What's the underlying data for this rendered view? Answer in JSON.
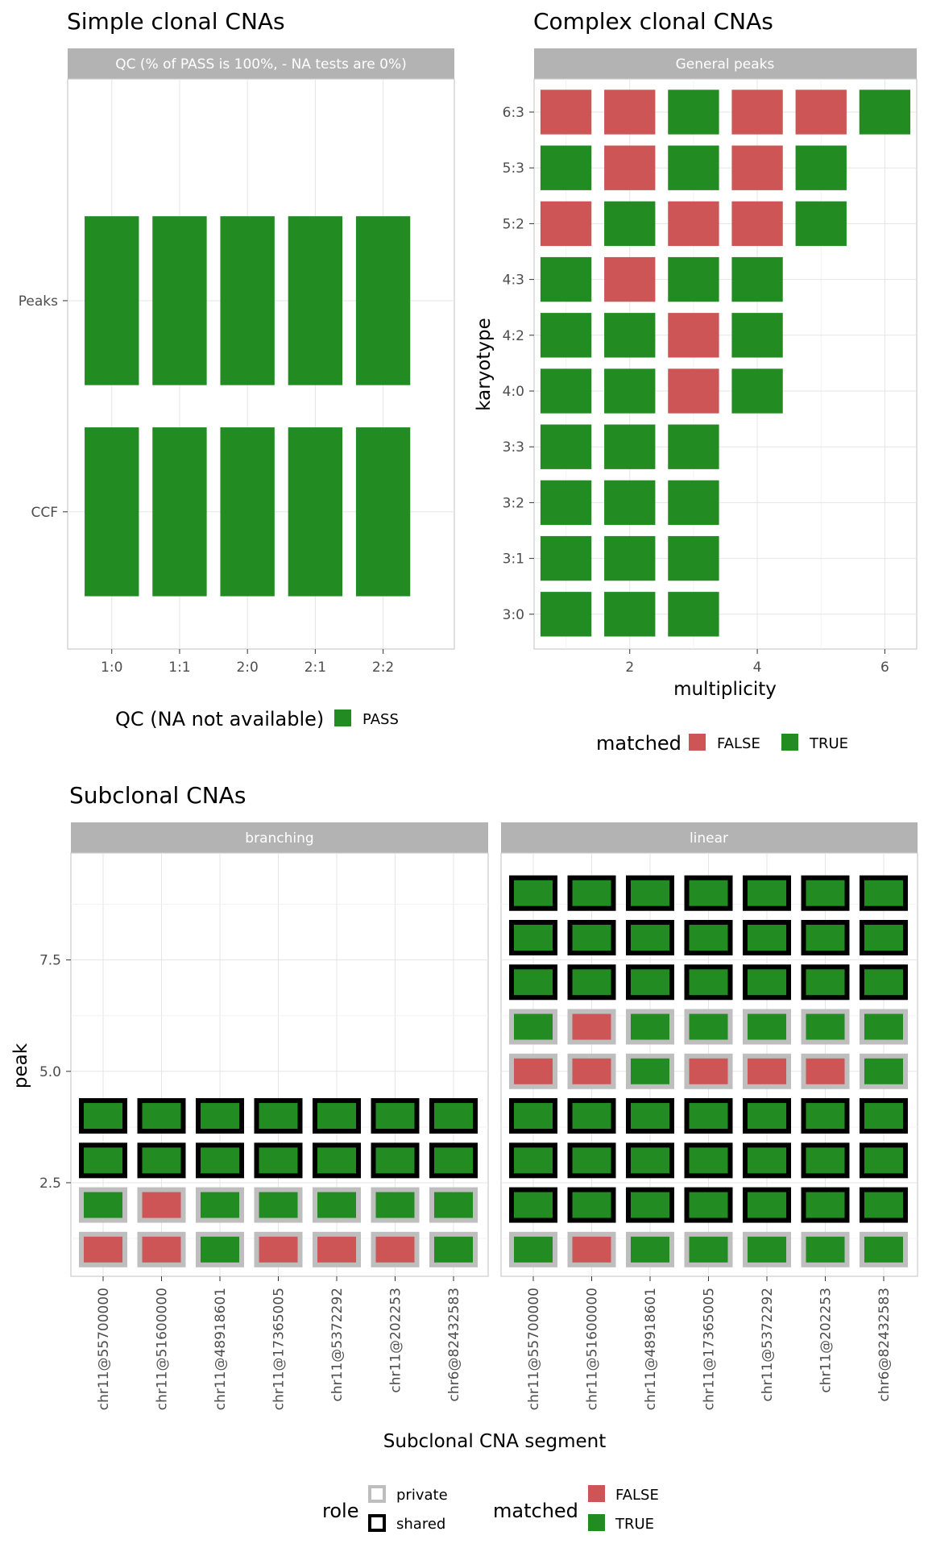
{
  "colors": {
    "pass": "#228B22",
    "true": "#228B22",
    "false": "#CD5555",
    "strip": "#B3B3B3",
    "private_border": "#BEBEBE",
    "shared_border": "#000000",
    "grid": "#E5E5E5",
    "panel_border": "#CCCCCC"
  },
  "chart_data": [
    {
      "type": "heatmap",
      "title": "Simple clonal CNAs",
      "facet": "QC (% of PASS is 100%, - NA tests are 0%)",
      "categories": [
        "1:0",
        "1:1",
        "2:0",
        "2:1",
        "2:2"
      ],
      "rows": [
        "Peaks",
        "CCF"
      ],
      "values": [
        [
          "PASS",
          "PASS",
          "PASS",
          "PASS",
          "PASS"
        ],
        [
          "PASS",
          "PASS",
          "PASS",
          "PASS",
          "PASS"
        ]
      ],
      "legend": {
        "title": "QC (NA not available)",
        "items": [
          "PASS"
        ],
        "placement": "bottom"
      }
    },
    {
      "type": "heatmap",
      "title": "Complex clonal CNAs",
      "facet": "General peaks",
      "xlabel": "multiplicity",
      "ylabel": "karyotype",
      "x_ticks": [
        "2",
        "4",
        "6"
      ],
      "xlim": [
        0.5,
        6.5
      ],
      "karyotypes": [
        "6:3",
        "5:3",
        "5:2",
        "4:3",
        "4:2",
        "4:0",
        "3:3",
        "3:2",
        "3:1",
        "3:0"
      ],
      "matched": [
        [
          false,
          false,
          true,
          false,
          false,
          true
        ],
        [
          true,
          false,
          true,
          false,
          true
        ],
        [
          false,
          true,
          false,
          false,
          true
        ],
        [
          true,
          false,
          true,
          true
        ],
        [
          true,
          true,
          false,
          true
        ],
        [
          true,
          true,
          false,
          true
        ],
        [
          true,
          true,
          true
        ],
        [
          true,
          true,
          true
        ],
        [
          true,
          true,
          true
        ],
        [
          true,
          true,
          true
        ]
      ],
      "legend": {
        "title": "matched",
        "items": [
          "FALSE",
          "TRUE"
        ],
        "placement": "bottom"
      }
    },
    {
      "type": "heatmap",
      "title": "Subclonal CNAs",
      "xlabel": "Subclonal CNA segment",
      "ylabel": "peak",
      "y_ticks": [
        "2.5",
        "5.0",
        "7.5"
      ],
      "ylim": [
        0.4,
        9.9
      ],
      "segments": [
        "chr11@55700000",
        "chr11@51600000",
        "chr11@48918601",
        "chr11@17365005",
        "chr11@5372292",
        "chr11@202253",
        "chr6@82432583"
      ],
      "facets": [
        {
          "name": "branching",
          "peaks": [
            {
              "peak": 1,
              "role": "private",
              "matched": [
                false,
                false,
                true,
                false,
                false,
                false,
                true
              ]
            },
            {
              "peak": 2,
              "role": "private",
              "matched": [
                true,
                false,
                true,
                true,
                true,
                true,
                true
              ]
            },
            {
              "peak": 3,
              "role": "shared",
              "matched": [
                true,
                true,
                true,
                true,
                true,
                true,
                true
              ]
            },
            {
              "peak": 4,
              "role": "shared",
              "matched": [
                true,
                true,
                true,
                true,
                true,
                true,
                true
              ]
            }
          ]
        },
        {
          "name": "linear",
          "peaks": [
            {
              "peak": 1,
              "role": "private",
              "matched": [
                true,
                false,
                true,
                true,
                true,
                true,
                true
              ]
            },
            {
              "peak": 2,
              "role": "shared",
              "matched": [
                true,
                true,
                true,
                true,
                true,
                true,
                true
              ]
            },
            {
              "peak": 3,
              "role": "shared",
              "matched": [
                true,
                true,
                true,
                true,
                true,
                true,
                true
              ]
            },
            {
              "peak": 4,
              "role": "shared",
              "matched": [
                true,
                true,
                true,
                true,
                true,
                true,
                true
              ]
            },
            {
              "peak": 5,
              "role": "private",
              "matched": [
                false,
                false,
                true,
                false,
                false,
                false,
                true
              ]
            },
            {
              "peak": 6,
              "role": "private",
              "matched": [
                true,
                false,
                true,
                true,
                true,
                true,
                true
              ]
            },
            {
              "peak": 7,
              "role": "shared",
              "matched": [
                true,
                true,
                true,
                true,
                true,
                true,
                true
              ]
            },
            {
              "peak": 8,
              "role": "shared",
              "matched": [
                true,
                true,
                true,
                true,
                true,
                true,
                true
              ]
            },
            {
              "peak": 9,
              "role": "shared",
              "matched": [
                true,
                true,
                true,
                true,
                true,
                true,
                true
              ]
            }
          ]
        }
      ],
      "legend_role": {
        "title": "role",
        "items": [
          "private",
          "shared"
        ]
      },
      "legend_matched": {
        "title": "matched",
        "items": [
          "FALSE",
          "TRUE"
        ]
      }
    }
  ]
}
